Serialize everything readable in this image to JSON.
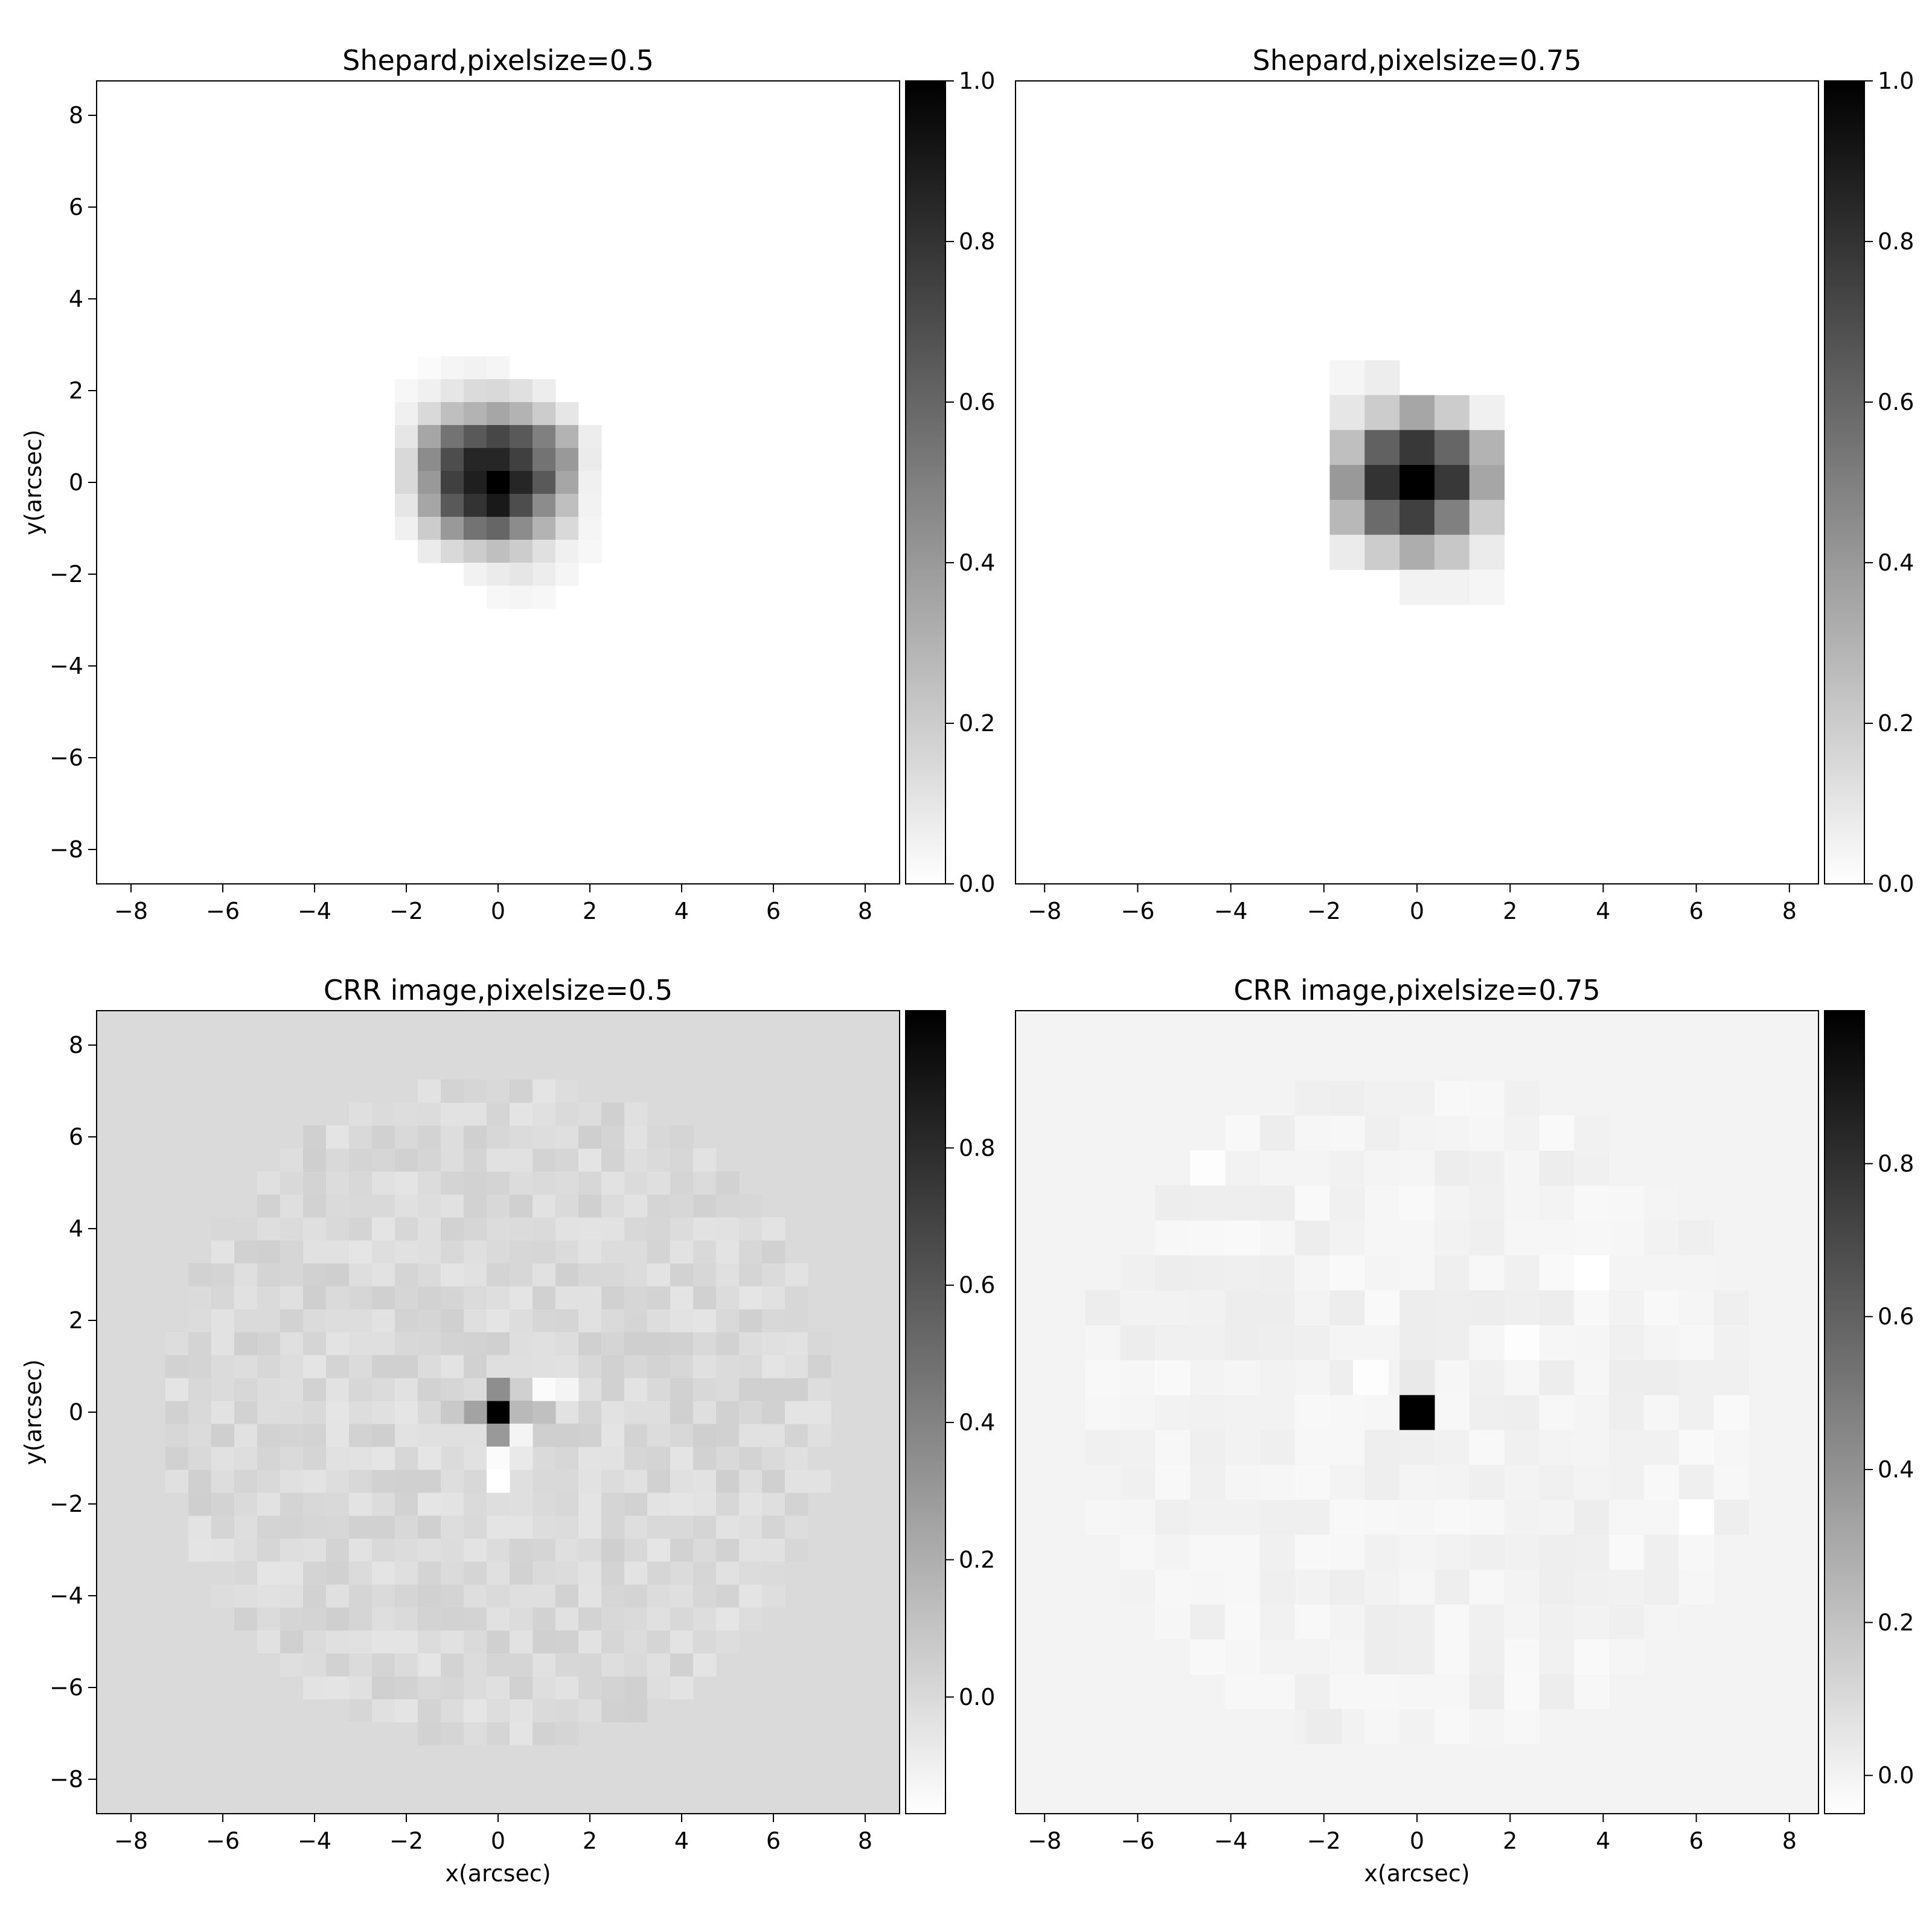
{
  "chart_data": [
    {
      "type": "heatmap",
      "title": "Shepard,pixelsize=0.5",
      "xlabel": "",
      "ylabel": "y(arcsec)",
      "xlim": [
        -8.75,
        8.75
      ],
      "ylim": [
        -8.75,
        8.75
      ],
      "xticks": [
        -8,
        -6,
        -4,
        -2,
        0,
        2,
        4,
        6,
        8
      ],
      "yticks": [
        -8,
        -6,
        -4,
        -2,
        0,
        2,
        4,
        6,
        8
      ],
      "xtick_labels": [
        "−8",
        "−6",
        "−4",
        "−2",
        "0",
        "2",
        "4",
        "6",
        "8"
      ],
      "ytick_labels": [
        "−8",
        "−6",
        "−4",
        "−2",
        "0",
        "2",
        "4",
        "6",
        "8"
      ],
      "colormap": "gray_r",
      "colorbar": {
        "range": [
          0.0,
          1.0
        ],
        "ticks": [
          0.0,
          0.2,
          0.4,
          0.6,
          0.8,
          1.0
        ],
        "tick_labels": [
          "0.0",
          "0.2",
          "0.4",
          "0.6",
          "0.8",
          "1.0"
        ]
      },
      "pixelsize": 0.5,
      "background": 0.0,
      "cells": [
        [
          -1.5,
          2.5,
          0.02
        ],
        [
          -1,
          2.5,
          0.04
        ],
        [
          -0.5,
          2.5,
          0.05
        ],
        [
          0,
          2.5,
          0.04
        ],
        [
          -2,
          2,
          0.03
        ],
        [
          -1.5,
          2,
          0.06
        ],
        [
          -1,
          2,
          0.1
        ],
        [
          -0.5,
          2,
          0.14
        ],
        [
          0,
          2,
          0.15
        ],
        [
          0.5,
          2,
          0.12
        ],
        [
          1,
          2,
          0.07
        ],
        [
          -2,
          1.5,
          0.06
        ],
        [
          -1.5,
          1.5,
          0.15
        ],
        [
          -1,
          1.5,
          0.25
        ],
        [
          -0.5,
          1.5,
          0.3
        ],
        [
          0,
          1.5,
          0.35
        ],
        [
          0.5,
          1.5,
          0.3
        ],
        [
          1,
          1.5,
          0.2
        ],
        [
          1.5,
          1.5,
          0.1
        ],
        [
          -2,
          1,
          0.1
        ],
        [
          -1.5,
          1,
          0.35
        ],
        [
          -1,
          1,
          0.55
        ],
        [
          -0.5,
          1,
          0.65
        ],
        [
          0,
          1,
          0.72
        ],
        [
          0.5,
          1,
          0.65
        ],
        [
          1,
          1,
          0.5
        ],
        [
          1.5,
          1,
          0.3
        ],
        [
          2,
          1,
          0.07
        ],
        [
          -2,
          0.5,
          0.15
        ],
        [
          -1.5,
          0.5,
          0.45
        ],
        [
          -1,
          0.5,
          0.7
        ],
        [
          -0.5,
          0.5,
          0.85
        ],
        [
          0,
          0.5,
          0.85
        ],
        [
          0.5,
          0.5,
          0.75
        ],
        [
          1,
          0.5,
          0.55
        ],
        [
          1.5,
          0.5,
          0.4
        ],
        [
          2,
          0.5,
          0.08
        ],
        [
          -2,
          0,
          0.15
        ],
        [
          -1.5,
          0,
          0.4
        ],
        [
          -1,
          0,
          0.75
        ],
        [
          -0.5,
          0,
          0.88
        ],
        [
          0,
          0,
          1.0
        ],
        [
          0.5,
          0,
          0.85
        ],
        [
          1,
          0,
          0.65
        ],
        [
          1.5,
          0,
          0.35
        ],
        [
          2,
          0,
          0.06
        ],
        [
          -2,
          -0.5,
          0.1
        ],
        [
          -1.5,
          -0.5,
          0.35
        ],
        [
          -1,
          -0.5,
          0.65
        ],
        [
          -0.5,
          -0.5,
          0.8
        ],
        [
          0,
          -0.5,
          0.9
        ],
        [
          0.5,
          -0.5,
          0.7
        ],
        [
          1,
          -0.5,
          0.45
        ],
        [
          1.5,
          -0.5,
          0.25
        ],
        [
          2,
          -0.5,
          0.05
        ],
        [
          -2,
          -1,
          0.06
        ],
        [
          -1.5,
          -1,
          0.2
        ],
        [
          -1,
          -1,
          0.4
        ],
        [
          -0.5,
          -1,
          0.55
        ],
        [
          0,
          -1,
          0.6
        ],
        [
          0.5,
          -1,
          0.45
        ],
        [
          1,
          -1,
          0.3
        ],
        [
          1.5,
          -1,
          0.15
        ],
        [
          2,
          -1,
          0.04
        ],
        [
          -1.5,
          -1.5,
          0.08
        ],
        [
          -1,
          -1.5,
          0.15
        ],
        [
          -0.5,
          -1.5,
          0.2
        ],
        [
          0,
          -1.5,
          0.25
        ],
        [
          0.5,
          -1.5,
          0.2
        ],
        [
          1,
          -1.5,
          0.12
        ],
        [
          1.5,
          -1.5,
          0.06
        ],
        [
          2,
          -1.5,
          0.03
        ],
        [
          -0.5,
          -2,
          0.05
        ],
        [
          0,
          -2,
          0.08
        ],
        [
          0.5,
          -2,
          0.1
        ],
        [
          1,
          -2,
          0.07
        ],
        [
          1.5,
          -2,
          0.04
        ],
        [
          0,
          -2.5,
          0.03
        ],
        [
          0.5,
          -2.5,
          0.04
        ],
        [
          1,
          -2.5,
          0.03
        ]
      ]
    },
    {
      "type": "heatmap",
      "title": "Shepard,pixelsize=0.75",
      "xlabel": "",
      "ylabel": "",
      "xlim": [
        -8.625,
        8.625
      ],
      "ylim": [
        -8.625,
        8.625
      ],
      "xticks": [
        -8,
        -6,
        -4,
        -2,
        0,
        2,
        4,
        6,
        8
      ],
      "yticks": [],
      "xtick_labels": [
        "−8",
        "−6",
        "−4",
        "−2",
        "0",
        "2",
        "4",
        "6",
        "8"
      ],
      "ytick_labels": [],
      "colormap": "gray_r",
      "colorbar": {
        "range": [
          0.0,
          1.0
        ],
        "ticks": [
          0.0,
          0.2,
          0.4,
          0.6,
          0.8,
          1.0
        ],
        "tick_labels": [
          "0.0",
          "0.2",
          "0.4",
          "0.6",
          "0.8",
          "1.0"
        ]
      },
      "pixelsize": 0.75,
      "background": 0.0,
      "cells": [
        [
          -1.5,
          2.25,
          0.04
        ],
        [
          -0.75,
          2.25,
          0.07
        ],
        [
          -1.5,
          1.5,
          0.1
        ],
        [
          -0.75,
          1.5,
          0.2
        ],
        [
          0,
          1.5,
          0.35
        ],
        [
          0.75,
          1.5,
          0.2
        ],
        [
          1.5,
          1.5,
          0.06
        ],
        [
          -1.5,
          0.75,
          0.25
        ],
        [
          -0.75,
          0.75,
          0.62
        ],
        [
          0,
          0.75,
          0.78
        ],
        [
          0.75,
          0.75,
          0.6
        ],
        [
          1.5,
          0.75,
          0.3
        ],
        [
          -1.5,
          0,
          0.4
        ],
        [
          -0.75,
          0,
          0.8
        ],
        [
          0,
          0,
          1.0
        ],
        [
          0.75,
          0,
          0.78
        ],
        [
          1.5,
          0,
          0.35
        ],
        [
          -1.5,
          -0.75,
          0.28
        ],
        [
          -0.75,
          -0.75,
          0.58
        ],
        [
          0,
          -0.75,
          0.75
        ],
        [
          0.75,
          -0.75,
          0.5
        ],
        [
          1.5,
          -0.75,
          0.2
        ],
        [
          -1.5,
          -1.5,
          0.08
        ],
        [
          -0.75,
          -1.5,
          0.2
        ],
        [
          0,
          -1.5,
          0.32
        ],
        [
          0.75,
          -1.5,
          0.22
        ],
        [
          1.5,
          -1.5,
          0.08
        ],
        [
          0,
          -2.25,
          0.05
        ],
        [
          0.75,
          -2.25,
          0.05
        ],
        [
          1.5,
          -2.25,
          0.04
        ]
      ]
    },
    {
      "type": "heatmap",
      "title": "CRR image,pixelsize=0.5",
      "xlabel": "x(arcsec)",
      "ylabel": "y(arcsec)",
      "xlim": [
        -8.75,
        8.75
      ],
      "ylim": [
        -8.75,
        8.75
      ],
      "xticks": [
        -8,
        -6,
        -4,
        -2,
        0,
        2,
        4,
        6,
        8
      ],
      "yticks": [
        -8,
        -6,
        -4,
        -2,
        0,
        2,
        4,
        6,
        8
      ],
      "xtick_labels": [
        "−8",
        "−6",
        "−4",
        "−2",
        "0",
        "2",
        "4",
        "6",
        "8"
      ],
      "ytick_labels": [
        "−8",
        "−6",
        "−4",
        "−2",
        "0",
        "2",
        "4",
        "6",
        "8"
      ],
      "colormap": "gray_r",
      "colorbar": {
        "range": [
          -0.17,
          1.0
        ],
        "ticks": [
          0.0,
          0.2,
          0.4,
          0.6,
          0.8
        ],
        "tick_labels": [
          "0.0",
          "0.2",
          "0.4",
          "0.6",
          "0.8"
        ]
      },
      "pixelsize": 0.5,
      "background": 0.0,
      "noise": {
        "radius": 7.25,
        "amplitude": 0.05,
        "seed": 7
      },
      "cells": [
        [
          0,
          0,
          1.0
        ],
        [
          0,
          0.5,
          0.35
        ],
        [
          0,
          -0.5,
          0.3
        ],
        [
          -0.5,
          0,
          0.25
        ],
        [
          0.5,
          0,
          0.15
        ],
        [
          1,
          0,
          0.12
        ],
        [
          -1,
          0,
          0.08
        ],
        [
          1,
          0.5,
          -0.15
        ],
        [
          1.5,
          0.5,
          -0.12
        ],
        [
          0,
          -1,
          -0.15
        ],
        [
          0,
          -1.5,
          -0.17
        ],
        [
          0.5,
          -0.5,
          -0.12
        ],
        [
          -1.5,
          -1,
          -0.05
        ],
        [
          0.5,
          -1,
          -0.07
        ],
        [
          1.5,
          -0.5,
          0.05
        ]
      ]
    },
    {
      "type": "heatmap",
      "title": "CRR image,pixelsize=0.75",
      "xlabel": "x(arcsec)",
      "ylabel": "",
      "xlim": [
        -8.625,
        8.625
      ],
      "ylim": [
        -8.625,
        8.625
      ],
      "xticks": [
        -8,
        -6,
        -4,
        -2,
        0,
        2,
        4,
        6,
        8
      ],
      "yticks": [],
      "xtick_labels": [
        "−8",
        "−6",
        "−4",
        "−2",
        "0",
        "2",
        "4",
        "6",
        "8"
      ],
      "ytick_labels": [],
      "colormap": "gray_r",
      "colorbar": {
        "range": [
          -0.05,
          1.0
        ],
        "ticks": [
          0.0,
          0.2,
          0.4,
          0.6,
          0.8
        ],
        "tick_labels": [
          "0.0",
          "0.2",
          "0.4",
          "0.6",
          "0.8"
        ]
      },
      "pixelsize": 0.75,
      "background": 0.0,
      "noise": {
        "radius": 7.25,
        "amplitude": 0.025,
        "seed": 13
      },
      "cells": [
        [
          0,
          0,
          1.0
        ],
        [
          -1,
          0.75,
          -0.04
        ],
        [
          2.25,
          1.5,
          -0.04
        ],
        [
          3.75,
          3,
          -0.05
        ],
        [
          -4.5,
          5.25,
          -0.04
        ],
        [
          6,
          -2.25,
          -0.05
        ],
        [
          -2,
          -6.75,
          0.03
        ],
        [
          0,
          0.75,
          0.04
        ]
      ]
    }
  ]
}
